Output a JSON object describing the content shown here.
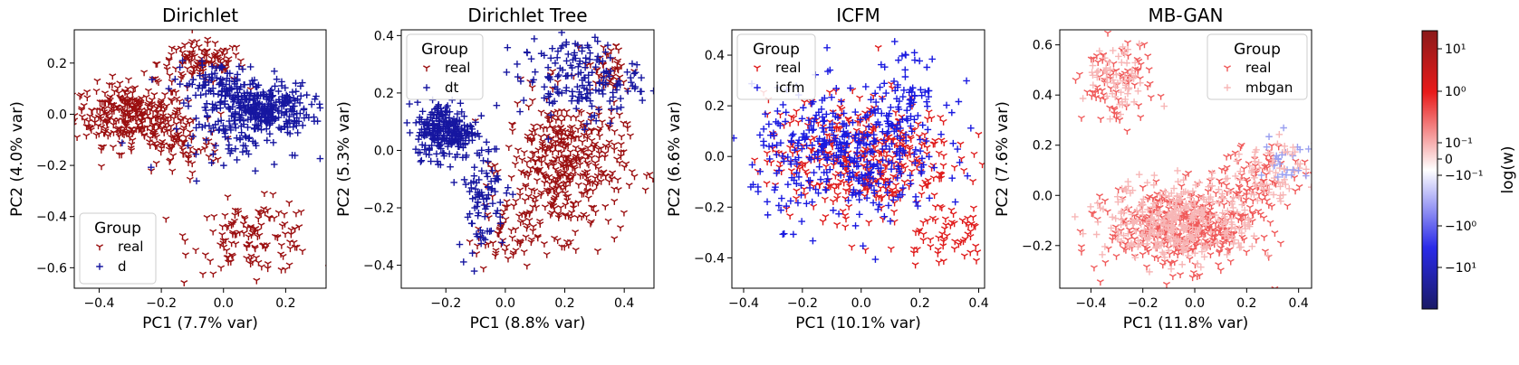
{
  "chart_data": [
    {
      "type": "scatter",
      "title": "Dirichlet",
      "xlabel": "PC1 (7.7% var)",
      "ylabel": "PC2 (4.0% var)",
      "xlim": [
        -0.48,
        0.33
      ],
      "ylim": [
        -0.68,
        0.33
      ],
      "xticks": [
        -0.4,
        -0.2,
        0.0,
        0.2
      ],
      "xtick_labels": [
        "−0.4",
        "−0.2",
        "0.0",
        "0.2"
      ],
      "yticks": [
        -0.6,
        -0.4,
        -0.2,
        0.0,
        0.2
      ],
      "ytick_labels": [
        "−0.6",
        "−0.4",
        "−0.2",
        "0.0",
        "0.2"
      ],
      "grid": false,
      "legend": {
        "title": "Group",
        "placement": "lower-left"
      },
      "series": [
        {
          "name": "real",
          "marker": "tri-down",
          "color": "#9b0f10",
          "clusters": [
            {
              "center": [
                -0.3,
                0.0
              ],
              "spread": [
                0.09,
                0.06
              ],
              "count": 300
            },
            {
              "center": [
                -0.07,
                0.2
              ],
              "spread": [
                0.07,
                0.04
              ],
              "count": 120
            },
            {
              "center": [
                0.1,
                -0.48
              ],
              "spread": [
                0.1,
                0.07
              ],
              "count": 130
            },
            {
              "center": [
                -0.15,
                -0.12
              ],
              "spread": [
                0.07,
                0.06
              ],
              "count": 80
            }
          ]
        },
        {
          "name": "d",
          "marker": "plus",
          "color": "#1616a0",
          "clusters": [
            {
              "center": [
                0.12,
                0.02
              ],
              "spread": [
                0.08,
                0.05
              ],
              "count": 320
            },
            {
              "center": [
                -0.02,
                0.12
              ],
              "spread": [
                0.07,
                0.04
              ],
              "count": 90
            },
            {
              "center": [
                0.05,
                -0.12
              ],
              "spread": [
                0.1,
                0.05
              ],
              "count": 50
            }
          ]
        }
      ]
    },
    {
      "type": "scatter",
      "title": "Dirichlet Tree",
      "xlabel": "PC1 (8.8% var)",
      "ylabel": "PC2 (5.3% var)",
      "xlim": [
        -0.35,
        0.5
      ],
      "ylim": [
        -0.48,
        0.42
      ],
      "xticks": [
        -0.2,
        0.0,
        0.2,
        0.4
      ],
      "xtick_labels": [
        "−0.2",
        "0.0",
        "0.2",
        "0.4"
      ],
      "yticks": [
        -0.4,
        -0.2,
        0.0,
        0.2,
        0.4
      ],
      "ytick_labels": [
        "−0.4",
        "−0.2",
        "0.0",
        "0.2",
        "0.4"
      ],
      "grid": false,
      "legend": {
        "title": "Group",
        "placement": "upper-left"
      },
      "series": [
        {
          "name": "real",
          "marker": "tri-down",
          "color": "#9b0f10",
          "clusters": [
            {
              "center": [
                0.2,
                -0.05
              ],
              "spread": [
                0.1,
                0.12
              ],
              "count": 420
            },
            {
              "center": [
                0.0,
                -0.3
              ],
              "spread": [
                0.05,
                0.06
              ],
              "count": 60
            },
            {
              "center": [
                0.35,
                0.28
              ],
              "spread": [
                0.04,
                0.05
              ],
              "count": 40
            }
          ]
        },
        {
          "name": "dt",
          "marker": "plus",
          "color": "#1616a0",
          "clusters": [
            {
              "center": [
                -0.2,
                0.07
              ],
              "spread": [
                0.05,
                0.05
              ],
              "count": 260
            },
            {
              "center": [
                -0.08,
                -0.15
              ],
              "spread": [
                0.04,
                0.1
              ],
              "count": 90
            },
            {
              "center": [
                0.25,
                0.25
              ],
              "spread": [
                0.1,
                0.07
              ],
              "count": 170
            }
          ]
        }
      ]
    },
    {
      "type": "scatter",
      "title": "ICFM",
      "xlabel": "PC1 (10.1% var)",
      "ylabel": "PC2 (6.6% var)",
      "xlim": [
        -0.44,
        0.42
      ],
      "ylim": [
        -0.52,
        0.5
      ],
      "xticks": [
        -0.4,
        -0.2,
        0.0,
        0.2,
        0.4
      ],
      "xtick_labels": [
        "−0.4",
        "−0.2",
        "0.0",
        "0.2",
        "0.4"
      ],
      "yticks": [
        -0.4,
        -0.2,
        0.0,
        0.2,
        0.4
      ],
      "ytick_labels": [
        "−0.4",
        "−0.2",
        "0.0",
        "0.2",
        "0.4"
      ],
      "grid": false,
      "legend": {
        "title": "Group",
        "placement": "upper-left"
      },
      "series": [
        {
          "name": "real",
          "marker": "tri-down",
          "color": "#e01b1b",
          "clusters": [
            {
              "center": [
                0.0,
                0.0
              ],
              "spread": [
                0.16,
                0.12
              ],
              "count": 420
            },
            {
              "center": [
                0.28,
                -0.3
              ],
              "spread": [
                0.07,
                0.06
              ],
              "count": 60
            }
          ]
        },
        {
          "name": "icfm",
          "marker": "plus",
          "color": "#1a1ae0",
          "clusters": [
            {
              "center": [
                -0.05,
                0.0
              ],
              "spread": [
                0.16,
                0.13
              ],
              "count": 380
            },
            {
              "center": [
                0.15,
                0.25
              ],
              "spread": [
                0.07,
                0.08
              ],
              "count": 70
            }
          ]
        }
      ]
    },
    {
      "type": "scatter",
      "title": "MB-GAN",
      "xlabel": "PC1 (11.8% var)",
      "ylabel": "PC2 (7.6% var)",
      "xlim": [
        -0.52,
        0.45
      ],
      "ylim": [
        -0.37,
        0.66
      ],
      "xticks": [
        -0.4,
        -0.2,
        0.0,
        0.2,
        0.4
      ],
      "xtick_labels": [
        "−0.4",
        "−0.2",
        "0.0",
        "0.2",
        "0.4"
      ],
      "yticks": [
        -0.2,
        0.0,
        0.2,
        0.4,
        0.6
      ],
      "ytick_labels": [
        "−0.2",
        "0.0",
        "0.2",
        "0.4",
        "0.6"
      ],
      "grid": false,
      "legend": {
        "title": "Group",
        "placement": "upper-right"
      },
      "series": [
        {
          "name": "real",
          "marker": "tri-down",
          "color": "#f05a5a",
          "clusters": [
            {
              "center": [
                -0.05,
                -0.13
              ],
              "spread": [
                0.14,
                0.08
              ],
              "count": 420
            },
            {
              "center": [
                -0.3,
                0.45
              ],
              "spread": [
                0.07,
                0.08
              ],
              "count": 80
            },
            {
              "center": [
                0.25,
                0.05
              ],
              "spread": [
                0.08,
                0.07
              ],
              "count": 80
            }
          ]
        },
        {
          "name": "mbgan",
          "marker": "plus",
          "color": "#f7b6b6",
          "clusters": [
            {
              "center": [
                -0.05,
                -0.1
              ],
              "spread": [
                0.14,
                0.08
              ],
              "count": 340
            },
            {
              "center": [
                -0.3,
                0.45
              ],
              "spread": [
                0.06,
                0.07
              ],
              "count": 60
            },
            {
              "center": [
                0.3,
                0.1
              ],
              "spread": [
                0.07,
                0.07
              ],
              "count": 90
            }
          ]
        }
      ]
    }
  ],
  "colorbar": {
    "label": "log(w)",
    "colormap": [
      "#1a1a66",
      "#2a2ae8",
      "#ffffff",
      "#e81a1a",
      "#8b1a1a"
    ],
    "tick_labels": [
      "10¹",
      "10⁰",
      "10⁻¹",
      "0",
      "−10⁻¹",
      "−10⁰",
      "−10¹"
    ]
  }
}
